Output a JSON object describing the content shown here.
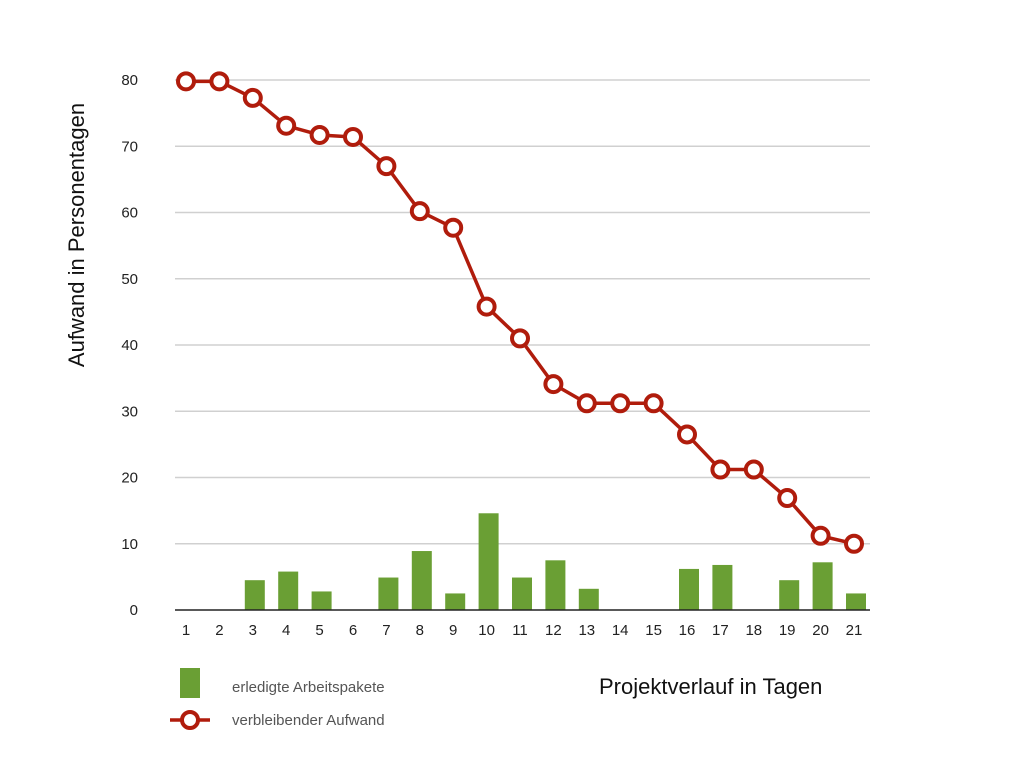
{
  "chart_data": {
    "type": "bar+line",
    "categories": [
      "1",
      "2",
      "3",
      "4",
      "5",
      "6",
      "7",
      "8",
      "9",
      "10",
      "11",
      "12",
      "13",
      "14",
      "15",
      "16",
      "17",
      "18",
      "19",
      "20",
      "21"
    ],
    "series": [
      {
        "name": "erledigte Arbeitspakete",
        "type": "bar",
        "color": "#6a9f34",
        "values": [
          0,
          0,
          4.5,
          5.8,
          2.8,
          0,
          4.9,
          8.9,
          2.5,
          14.6,
          4.9,
          7.5,
          3.2,
          0,
          0,
          6.2,
          6.8,
          0,
          4.5,
          7.2,
          2.5
        ]
      },
      {
        "name": "verbleibender Aufwand",
        "type": "line",
        "color": "#b01c0c",
        "values": [
          79.8,
          79.8,
          77.3,
          73.1,
          71.7,
          71.4,
          67.0,
          60.2,
          57.7,
          45.8,
          41.0,
          34.1,
          31.2,
          31.2,
          31.2,
          26.5,
          21.2,
          21.2,
          16.9,
          11.2,
          10.0
        ]
      }
    ],
    "ylim": [
      0,
      80
    ],
    "yticks": [
      0,
      10,
      20,
      30,
      40,
      50,
      60,
      70,
      80
    ],
    "xlabel": "Projektverlauf in Tagen",
    "ylabel": "Aufwand in Personentagen",
    "grid": true,
    "legend": "bottom-left"
  }
}
